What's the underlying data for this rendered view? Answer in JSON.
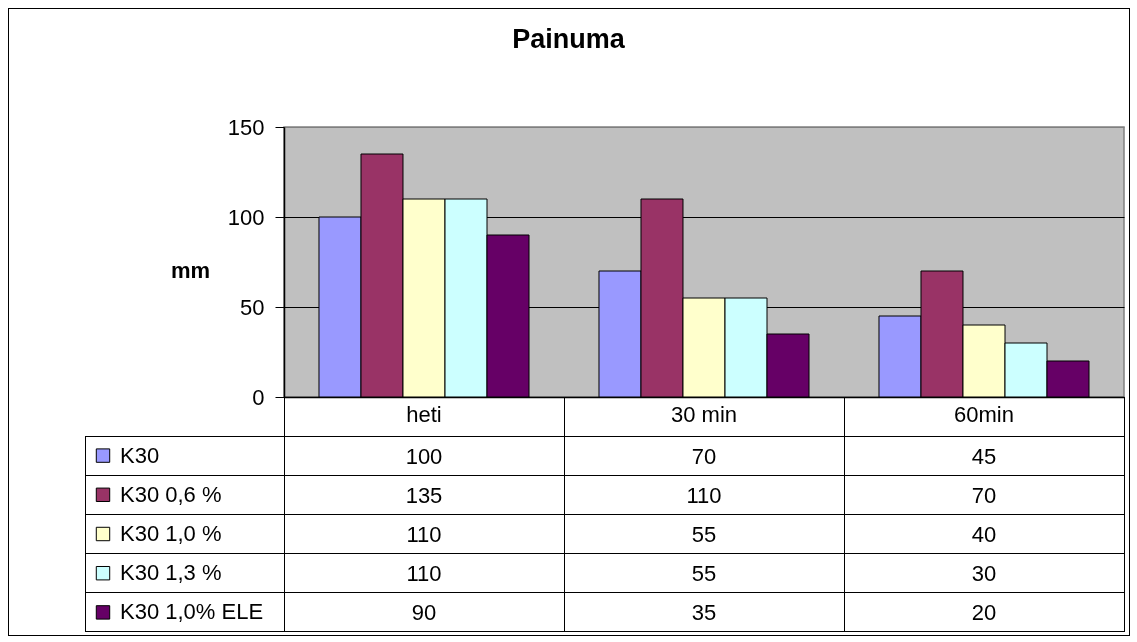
{
  "chart_data": {
    "type": "bar",
    "title": "Painuma",
    "ylabel": "mm",
    "categories": [
      "heti",
      "30 min",
      "60min"
    ],
    "series": [
      {
        "name": "K30",
        "color": "#9999ff",
        "values": [
          100,
          70,
          45
        ]
      },
      {
        "name": "K30 0,6 %",
        "color": "#993366",
        "values": [
          135,
          110,
          70
        ]
      },
      {
        "name": "K30 1,0 %",
        "color": "#ffffcc",
        "values": [
          110,
          55,
          40
        ]
      },
      {
        "name": "K30 1,3 %",
        "color": "#ccffff",
        "values": [
          110,
          55,
          30
        ]
      },
      {
        "name": "K30 1,0% ELE",
        "color": "#660066",
        "values": [
          90,
          35,
          20
        ]
      }
    ],
    "ylim": [
      0,
      150
    ],
    "yticks": [
      0,
      50,
      100,
      150
    ],
    "grid": "y",
    "legend": "bottom left",
    "data_labels": true
  }
}
